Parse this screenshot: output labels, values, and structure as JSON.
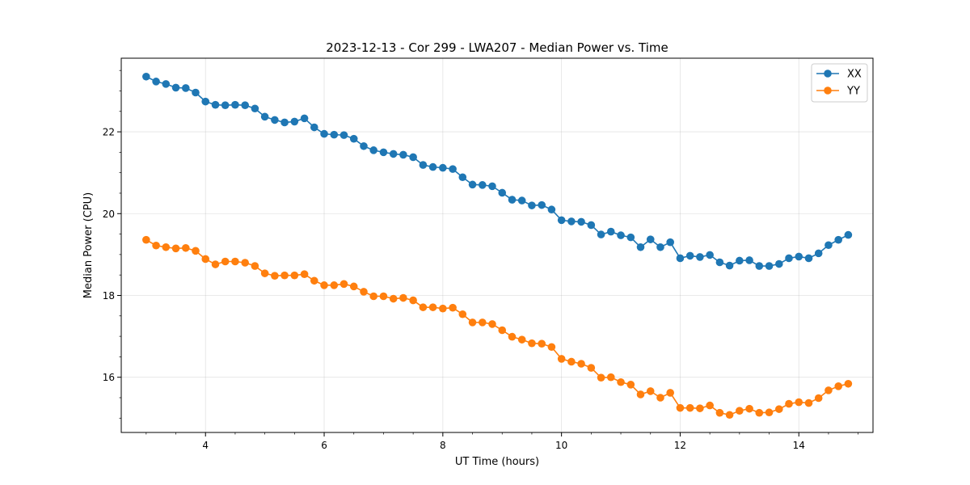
{
  "chart_data": {
    "type": "line",
    "title": "2023-12-13 - Cor 299 - LWA207 - Median Power vs. Time",
    "xlabel": "UT Time (hours)",
    "ylabel": "Median Power (CPU)",
    "xlim": [
      2.58,
      15.25
    ],
    "ylim": [
      14.65,
      23.8
    ],
    "x_ticks": [
      4,
      6,
      8,
      10,
      12,
      14
    ],
    "x_tick_labels": [
      "4",
      "6",
      "8",
      "10",
      "12",
      "14"
    ],
    "y_ticks": [
      16,
      18,
      20,
      22
    ],
    "y_tick_labels": [
      "16",
      "18",
      "20",
      "22"
    ],
    "grid": true,
    "legend_position": "top-right",
    "colors": {
      "XX": "#1f77b4",
      "YY": "#ff7f0e"
    },
    "x": [
      3.0,
      3.167,
      3.333,
      3.5,
      3.667,
      3.833,
      4.0,
      4.167,
      4.333,
      4.5,
      4.667,
      4.833,
      5.0,
      5.167,
      5.333,
      5.5,
      5.667,
      5.833,
      6.0,
      6.167,
      6.333,
      6.5,
      6.667,
      6.833,
      7.0,
      7.167,
      7.333,
      7.5,
      7.667,
      7.833,
      8.0,
      8.167,
      8.333,
      8.5,
      8.667,
      8.833,
      9.0,
      9.167,
      9.333,
      9.5,
      9.667,
      9.833,
      10.0,
      10.167,
      10.333,
      10.5,
      10.667,
      10.833,
      11.0,
      11.167,
      11.333,
      11.5,
      11.667,
      11.833,
      12.0,
      12.167,
      12.333,
      12.5,
      12.667,
      12.833,
      13.0,
      13.167,
      13.333,
      13.5,
      13.667,
      13.833,
      14.0,
      14.167,
      14.333,
      14.5,
      14.667,
      14.833
    ],
    "series": [
      {
        "name": "XX",
        "values": [
          23.35,
          23.23,
          23.17,
          23.08,
          23.07,
          22.96,
          22.74,
          22.66,
          22.65,
          22.66,
          22.65,
          22.57,
          22.37,
          22.29,
          22.23,
          22.25,
          22.33,
          22.11,
          21.95,
          21.93,
          21.92,
          21.83,
          21.65,
          21.55,
          21.5,
          21.46,
          21.44,
          21.38,
          21.19,
          21.14,
          21.12,
          21.09,
          20.89,
          20.71,
          20.7,
          20.67,
          20.51,
          20.34,
          20.32,
          20.2,
          20.21,
          20.1,
          19.84,
          19.81,
          19.8,
          19.72,
          19.49,
          19.56,
          19.47,
          19.42,
          19.18,
          19.37,
          19.18,
          19.3,
          18.91,
          18.97,
          18.94,
          18.99,
          18.81,
          18.73,
          18.85,
          18.86,
          18.72,
          18.72,
          18.77,
          18.91,
          18.95,
          18.91,
          19.03,
          19.23,
          19.36,
          19.48
        ]
      },
      {
        "name": "YY",
        "values": [
          19.36,
          19.22,
          19.18,
          19.15,
          19.16,
          19.09,
          18.89,
          18.76,
          18.83,
          18.83,
          18.8,
          18.72,
          18.54,
          18.48,
          18.49,
          18.49,
          18.52,
          18.36,
          18.25,
          18.25,
          18.28,
          18.22,
          18.09,
          17.98,
          17.98,
          17.92,
          17.94,
          17.88,
          17.71,
          17.71,
          17.68,
          17.7,
          17.54,
          17.34,
          17.34,
          17.3,
          17.15,
          16.99,
          16.92,
          16.83,
          16.82,
          16.74,
          16.45,
          16.38,
          16.33,
          16.23,
          15.99,
          16.0,
          15.88,
          15.82,
          15.58,
          15.66,
          15.5,
          15.62,
          15.25,
          15.25,
          15.24,
          15.31,
          15.13,
          15.08,
          15.18,
          15.23,
          15.13,
          15.14,
          15.22,
          15.35,
          15.39,
          15.37,
          15.49,
          15.68,
          15.78,
          15.84
        ]
      }
    ]
  }
}
